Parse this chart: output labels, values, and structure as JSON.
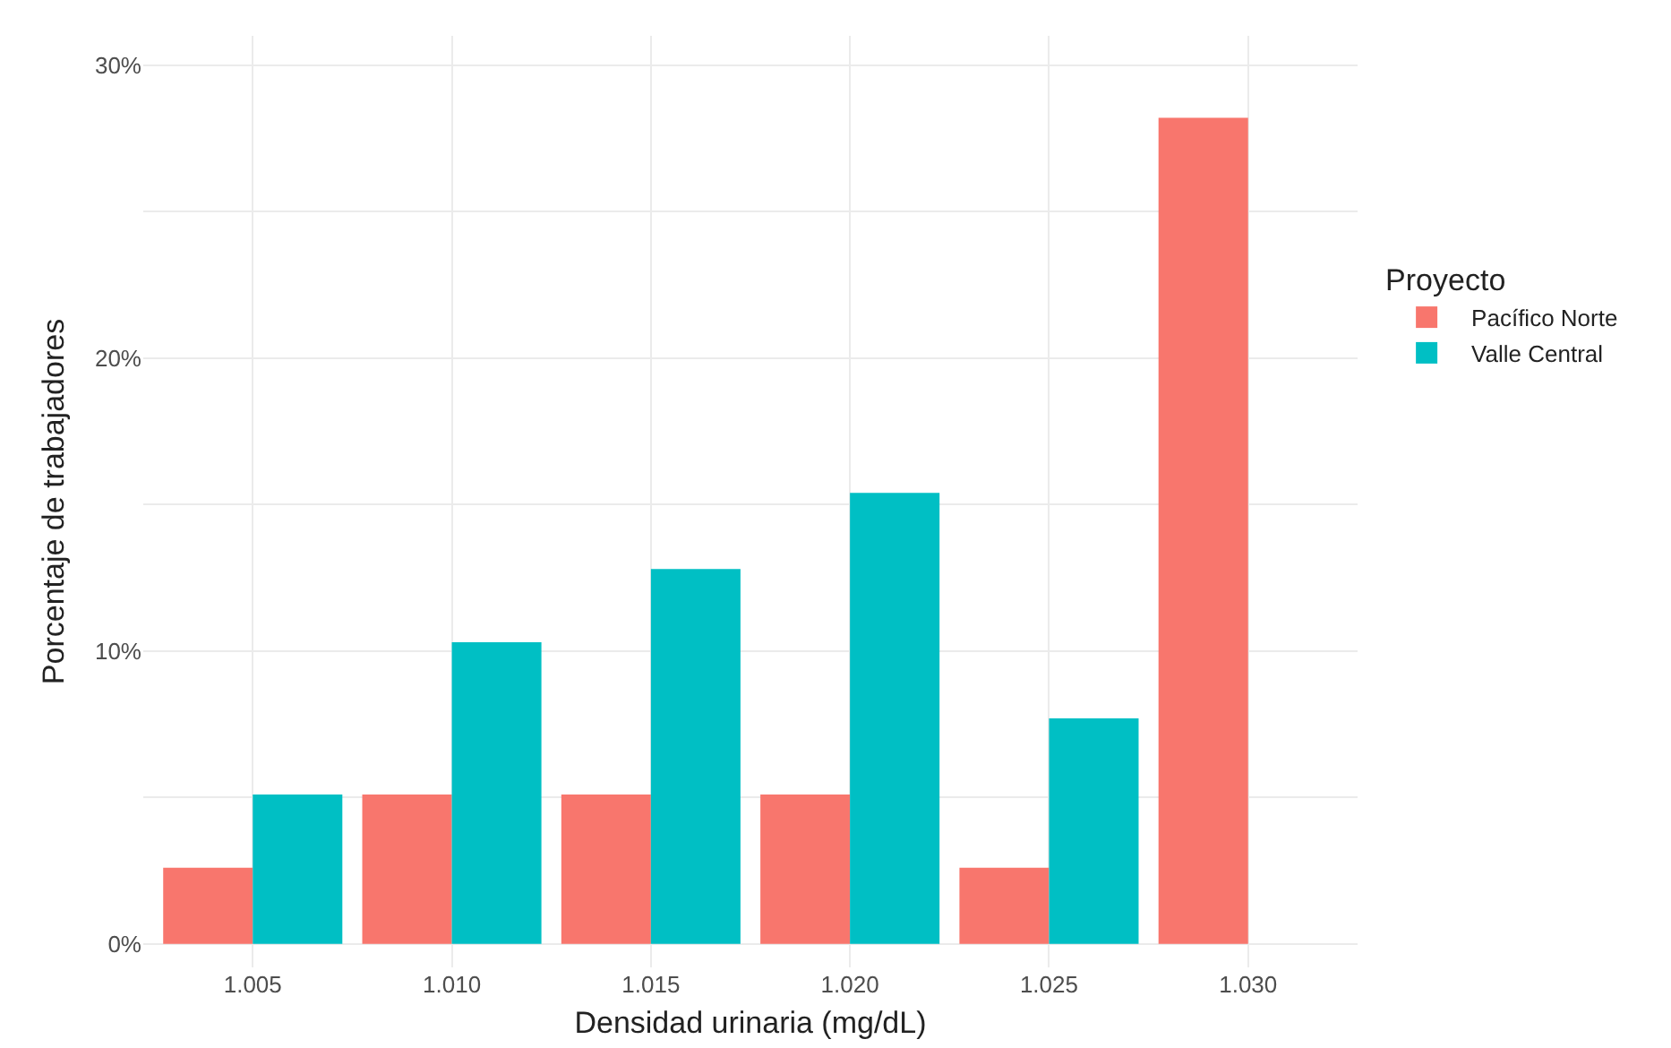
{
  "chart_data": {
    "type": "bar",
    "xlabel": "Densidad urinaria (mg/dL)",
    "ylabel": "Porcentaje de trabajadores",
    "legend_title": "Proyecto",
    "categories": [
      "1.005",
      "1.010",
      "1.015",
      "1.020",
      "1.025",
      "1.030"
    ],
    "series": [
      {
        "name": "Pacífico Norte",
        "color": "#f8766d",
        "values": [
          2.6,
          5.1,
          5.1,
          5.1,
          2.6,
          28.2
        ]
      },
      {
        "name": "Valle Central",
        "color": "#00bfc4",
        "values": [
          5.1,
          10.3,
          12.8,
          15.4,
          7.7,
          null
        ]
      }
    ],
    "ylim": [
      -0.8,
      31
    ],
    "yticks": [
      {
        "value": 0,
        "label": "0%"
      },
      {
        "value": 5,
        "label": null
      },
      {
        "value": 10,
        "label": "10%"
      },
      {
        "value": 15,
        "label": null
      },
      {
        "value": 20,
        "label": "20%"
      },
      {
        "value": 25,
        "label": null
      },
      {
        "value": 30,
        "label": "30%"
      }
    ],
    "grid": true,
    "legend": "right"
  }
}
